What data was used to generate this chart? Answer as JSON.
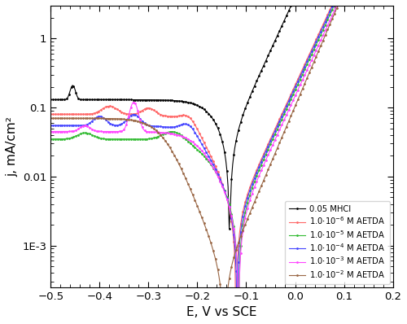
{
  "xlabel": "E, V vs SCE",
  "ylabel": "j, mA/cm²",
  "xlim": [
    -0.5,
    0.2
  ],
  "ylim": [
    0.00025,
    3.0
  ],
  "colors": [
    "black",
    "#ff6666",
    "#33bb33",
    "#4444ff",
    "#ff44ff",
    "#996644"
  ],
  "legend_labels": [
    "0.05 MHCl",
    "1.0·10⁻⁶ M AETDA",
    "1.0·10⁻⁵ M AETDA",
    "1.0·10⁻⁴ M AETDA",
    "1.0·10⁻³ M AETDA",
    "1.0·10⁻² M AETDA"
  ]
}
